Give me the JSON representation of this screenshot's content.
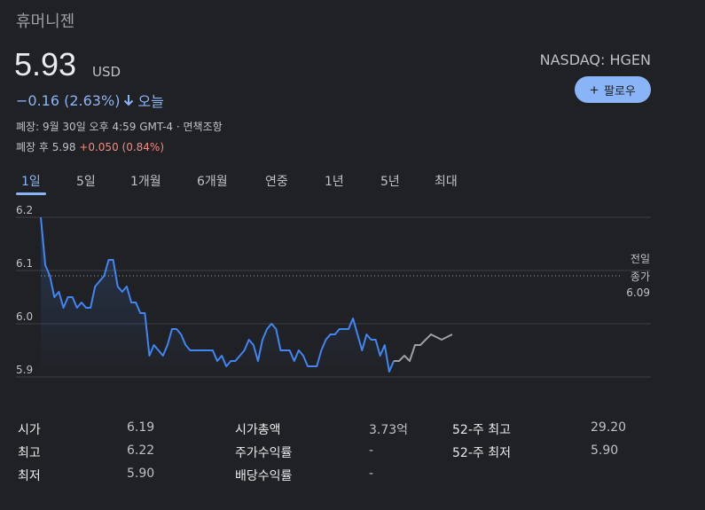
{
  "header": {
    "company": "휴머니젠",
    "price": "5.93",
    "currency": "USD",
    "change": "−0.16 (2.63%)",
    "change_period": "오늘",
    "ticker": "NASDAQ: HGEN",
    "follow_label": "팔로우",
    "close_note": "폐장: 9월 30일 오후 4:59 GMT-4 · 면책조항",
    "after_hours_prefix": "폐장 후 5.98 ",
    "after_hours_change": "+0.050 (0.84%)"
  },
  "tabs": [
    "1일",
    "5일",
    "1개월",
    "6개월",
    "연중",
    "1년",
    "5년",
    "최대"
  ],
  "active_tab": "1일",
  "colors": {
    "background": "#202124",
    "accent": "#8ab4f8",
    "line_regular": "#4285f4",
    "line_after_hours": "#9aa0a6",
    "positive": "#f28b82"
  },
  "chart_data": {
    "type": "line",
    "ylim": [
      5.9,
      6.2
    ],
    "yticks": [
      "6.2",
      "6.1",
      "6.0",
      "5.9"
    ],
    "prev_close": {
      "label_line1": "전일",
      "label_line2": "종가",
      "value": "6.09",
      "numeric": 6.09
    },
    "series": [
      {
        "values": [
          6.2,
          6.11,
          6.09,
          6.05,
          6.06,
          6.03,
          6.05,
          6.05,
          6.03,
          6.04,
          6.03,
          6.03,
          6.07,
          6.08,
          6.09,
          6.12,
          6.12,
          6.07,
          6.06,
          6.07,
          6.04,
          6.04,
          6.02,
          6.02,
          5.94,
          5.96,
          5.95,
          5.94,
          5.96,
          5.99,
          5.99,
          5.98,
          5.96,
          5.95,
          5.95,
          5.95,
          5.95,
          5.95,
          5.95,
          5.93,
          5.94,
          5.92,
          5.93,
          5.93,
          5.94,
          5.95,
          5.97,
          5.96,
          5.93,
          5.97,
          5.99,
          6.0,
          5.99,
          5.95,
          5.95,
          5.95,
          5.93,
          5.95,
          5.94,
          5.92,
          5.92,
          5.92,
          5.95,
          5.97,
          5.98,
          5.98,
          5.99,
          5.99,
          5.99,
          6.01,
          5.98,
          5.95,
          5.98,
          5.97,
          5.97,
          5.94,
          5.96,
          5.91,
          5.93
        ]
      },
      {
        "values": [
          5.93,
          5.93,
          5.94,
          5.93,
          5.96,
          5.96,
          5.97,
          5.98,
          5.975,
          5.97,
          5.975,
          5.98
        ]
      }
    ]
  },
  "stats": {
    "left": [
      {
        "label": "시가",
        "value": "6.19"
      },
      {
        "label": "최고",
        "value": "6.22"
      },
      {
        "label": "최저",
        "value": "5.90"
      }
    ],
    "middle": [
      {
        "label": "시가총액",
        "value": "3.73억"
      },
      {
        "label": "주가수익률",
        "value": "-"
      },
      {
        "label": "배당수익률",
        "value": "-"
      }
    ],
    "right": [
      {
        "label": "52-주 최고",
        "value": "29.20"
      },
      {
        "label": "52-주 최저",
        "value": "5.90"
      }
    ]
  }
}
